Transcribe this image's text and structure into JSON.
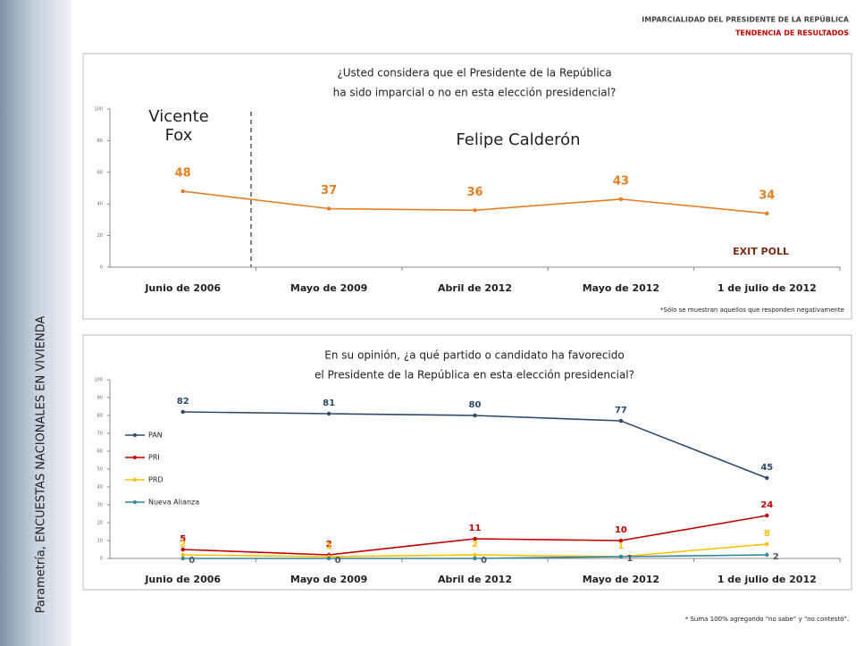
{
  "header": {
    "title": "IMPARCIALIDAD DEL PRESIDENTE DE LA REPÚBLICA",
    "subtitle": "TENDENCIA DE RESULTADOS"
  },
  "side_text": "Parametría, ENCUESTAS NACIONALES EN VIVIENDA",
  "chart_data": [
    {
      "type": "line",
      "title": [
        "¿Usted considera que el Presidente de la República",
        "ha sido imparcial o no en esta elección presidencial?"
      ],
      "categories": [
        "Junio de 2006",
        "Mayo de 2009",
        "Abril de 2012",
        "Mayo de 2012",
        "1 de julio de 2012"
      ],
      "values": [
        48,
        37,
        36,
        43,
        34
      ],
      "color": "#e67e22",
      "ylim": [
        0,
        100
      ],
      "yticks": [
        0,
        20,
        40,
        60,
        80,
        100
      ],
      "grid": false,
      "era_labels": [
        "Vicente Fox",
        "Felipe Calderón"
      ],
      "annotation": "EXIT POLL",
      "footnote": "*Sólo se muestran aquellos que responden negativamente"
    },
    {
      "type": "line",
      "title": [
        "En su opinión, ¿a qué partido o candidato ha favorecido",
        "el Presidente de la República en esta elección presidencial?"
      ],
      "categories": [
        "Junio de 2006",
        "Mayo de 2009",
        "Abril de 2012",
        "Mayo de 2012",
        "1 de julio de 2012"
      ],
      "series": [
        {
          "name": "PAN",
          "color": "#2e4a6b",
          "values": [
            82,
            81,
            80,
            77,
            45
          ]
        },
        {
          "name": "PRI",
          "color": "#c00000",
          "values": [
            5,
            2,
            11,
            10,
            24
          ]
        },
        {
          "name": "PRD",
          "color": "#ffc000",
          "values": [
            2,
            1,
            2,
            1,
            8
          ]
        },
        {
          "name": "Nueva Alianza",
          "color": "#31859c",
          "values": [
            0,
            0,
            0,
            1,
            2
          ]
        }
      ],
      "ylim": [
        0,
        100
      ],
      "yticks": [
        0,
        10,
        20,
        30,
        40,
        50,
        60,
        70,
        80,
        90,
        100
      ],
      "grid": false,
      "legend": "left",
      "footnote": "* Suma 100% agregando “no sabe” y “no contestó”."
    }
  ]
}
